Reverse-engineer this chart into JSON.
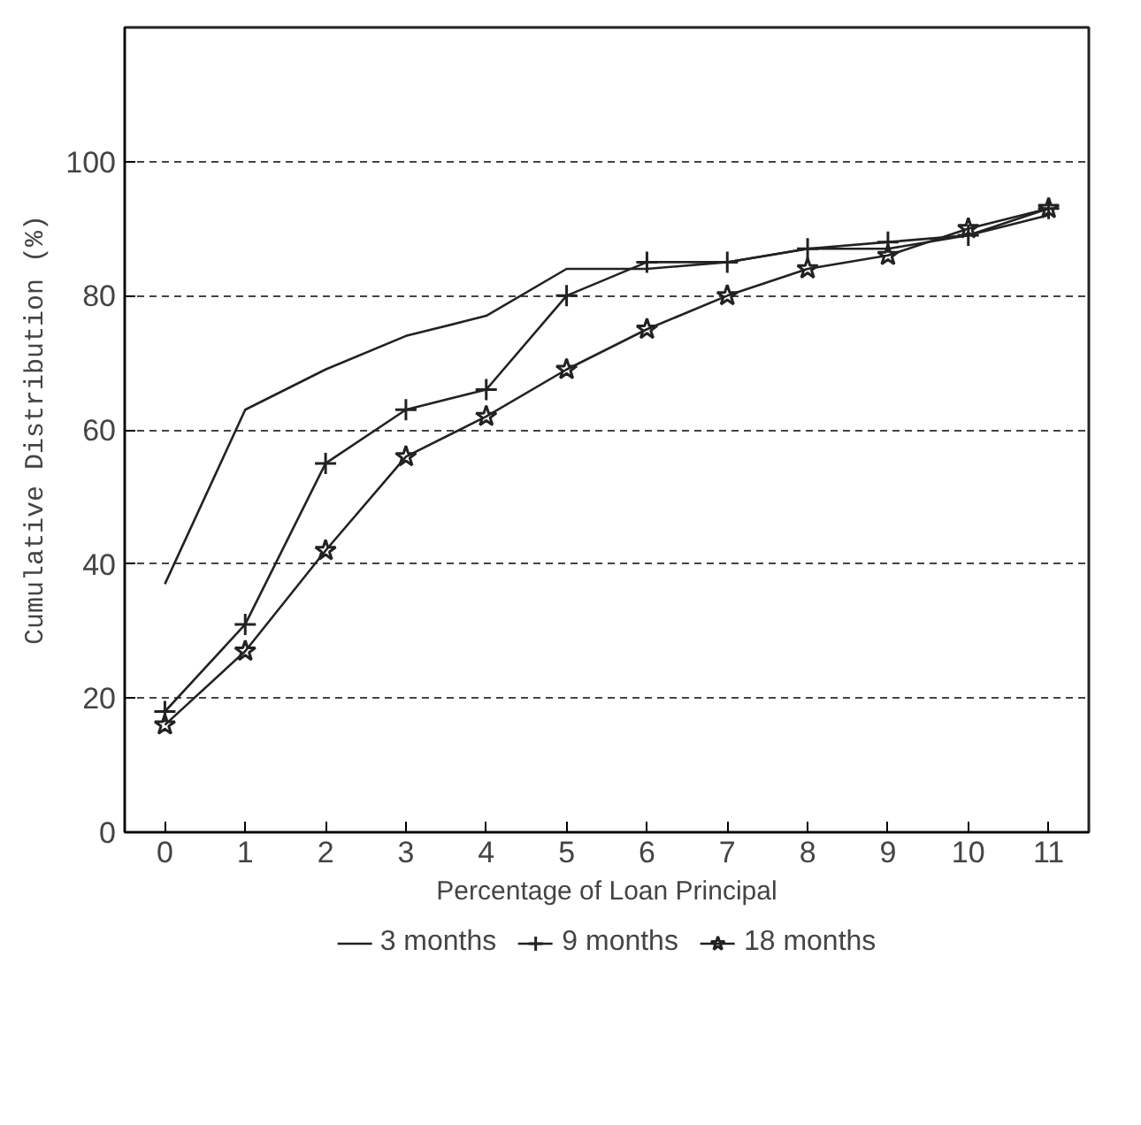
{
  "chart_data": {
    "type": "line",
    "xlabel": "Percentage of Loan Principal",
    "ylabel": "Cumulative Distribution (%)",
    "x": [
      0,
      1,
      2,
      3,
      4,
      5,
      6,
      7,
      8,
      9,
      10,
      11
    ],
    "series": [
      {
        "name": "3 months",
        "color": "#222222",
        "marker": "none",
        "values": [
          37,
          63,
          69,
          74,
          77,
          84,
          84,
          85,
          87,
          87,
          89,
          92
        ]
      },
      {
        "name": "9 months",
        "color": "#222222",
        "marker": "cross",
        "values": [
          18,
          31,
          55,
          63,
          66,
          80,
          85,
          85,
          87,
          88,
          89,
          93
        ]
      },
      {
        "name": "18 months",
        "color": "#222222",
        "marker": "star",
        "values": [
          16,
          27,
          42,
          56,
          62,
          69,
          75,
          80,
          84,
          86,
          90,
          93
        ]
      }
    ],
    "xlim": [
      -0.5,
      11.5
    ],
    "ylim": [
      0,
      120
    ],
    "xticks": [
      0,
      1,
      2,
      3,
      4,
      5,
      6,
      7,
      8,
      9,
      10,
      11
    ],
    "yticks": [
      0,
      20,
      40,
      60,
      80,
      100
    ],
    "grid": "y",
    "legend": "bottom",
    "line_style": "solid"
  }
}
